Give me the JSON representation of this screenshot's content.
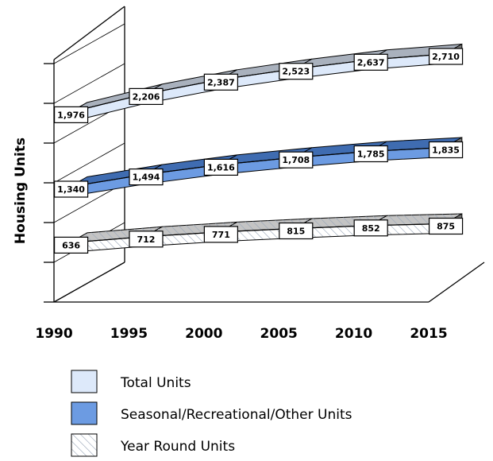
{
  "chart_data": {
    "type": "ribbon3d",
    "ylabel": "Housing Units",
    "x": [
      1990,
      1995,
      2000,
      2005,
      2010,
      2015
    ],
    "xlim": [
      1990,
      2015
    ],
    "xticks": [
      1990,
      1995,
      2000,
      2005,
      2010,
      2015
    ],
    "ylim": [
      0,
      3000
    ],
    "yticks": [
      0,
      500,
      1000,
      1500,
      2000,
      2500,
      3000
    ],
    "series": [
      {
        "name": "Total Units",
        "color": "#dde9fa",
        "top_color": "#a9b1bd",
        "hatch": false,
        "values": [
          1976,
          2206,
          2387,
          2523,
          2637,
          2710
        ],
        "value_labels": [
          "1,976",
          "2,206",
          "2,387",
          "2,523",
          "2,637",
          "2,710"
        ]
      },
      {
        "name": "Seasonal/Recreational/Other Units",
        "color": "#6c9be2",
        "top_color": "#3f6cb1",
        "hatch": false,
        "values": [
          1340,
          1494,
          1616,
          1708,
          1785,
          1835
        ],
        "value_labels": [
          "1,340",
          "1,494",
          "1,616",
          "1,708",
          "1,785",
          "1,835"
        ]
      },
      {
        "name": "Year Round Units",
        "color": "#ffffff",
        "top_color": "#c4c4c4",
        "hatch": true,
        "values": [
          636,
          712,
          771,
          815,
          852,
          875
        ],
        "value_labels": [
          "636",
          "712",
          "771",
          "815",
          "852",
          "875"
        ]
      }
    ]
  }
}
